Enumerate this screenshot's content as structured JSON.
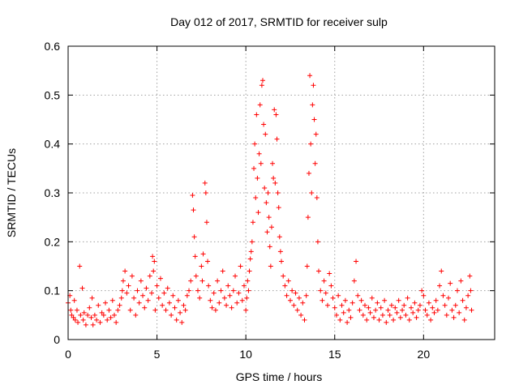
{
  "chart_data": {
    "type": "scatter",
    "title": "Day 012 of 2017, SRMTID for receiver sulp",
    "xlabel": "GPS time / hours",
    "ylabel": "SRMTID / TECUs",
    "xlim": [
      0,
      24
    ],
    "ylim": [
      0,
      0.6
    ],
    "x_ticks": [
      0,
      5,
      10,
      15,
      20
    ],
    "x_tick_labels": [
      "0",
      "5",
      "10",
      "15",
      "20"
    ],
    "y_ticks": [
      0,
      0.1,
      0.2,
      0.3,
      0.4,
      0.5,
      0.6
    ],
    "y_tick_labels": [
      "0",
      "0.1",
      "0.2",
      "0.3",
      "0.4",
      "0.5",
      "0.6"
    ],
    "grid": true,
    "marker": "+",
    "color": "#ff0000",
    "series": [
      {
        "name": "SRMTID",
        "points": [
          [
            0.0,
            0.075
          ],
          [
            0.1,
            0.09
          ],
          [
            0.15,
            0.06
          ],
          [
            0.2,
            0.05
          ],
          [
            0.3,
            0.045
          ],
          [
            0.35,
            0.08
          ],
          [
            0.4,
            0.04
          ],
          [
            0.5,
            0.06
          ],
          [
            0.55,
            0.035
          ],
          [
            0.65,
            0.15
          ],
          [
            0.7,
            0.05
          ],
          [
            0.8,
            0.105
          ],
          [
            0.85,
            0.04
          ],
          [
            0.9,
            0.055
          ],
          [
            1.0,
            0.03
          ],
          [
            1.1,
            0.05
          ],
          [
            1.2,
            0.065
          ],
          [
            1.3,
            0.045
          ],
          [
            1.35,
            0.085
          ],
          [
            1.4,
            0.03
          ],
          [
            1.5,
            0.05
          ],
          [
            1.6,
            0.04
          ],
          [
            1.7,
            0.07
          ],
          [
            1.8,
            0.035
          ],
          [
            1.9,
            0.055
          ],
          [
            2.0,
            0.05
          ],
          [
            2.1,
            0.075
          ],
          [
            2.2,
            0.04
          ],
          [
            2.3,
            0.06
          ],
          [
            2.4,
            0.045
          ],
          [
            2.5,
            0.08
          ],
          [
            2.6,
            0.05
          ],
          [
            2.7,
            0.035
          ],
          [
            2.8,
            0.06
          ],
          [
            2.9,
            0.07
          ],
          [
            3.0,
            0.085
          ],
          [
            3.05,
            0.1
          ],
          [
            3.1,
            0.12
          ],
          [
            3.2,
            0.14
          ],
          [
            3.3,
            0.095
          ],
          [
            3.4,
            0.11
          ],
          [
            3.5,
            0.06
          ],
          [
            3.6,
            0.13
          ],
          [
            3.7,
            0.085
          ],
          [
            3.8,
            0.05
          ],
          [
            3.9,
            0.1
          ],
          [
            4.0,
            0.075
          ],
          [
            4.1,
            0.12
          ],
          [
            4.2,
            0.09
          ],
          [
            4.3,
            0.065
          ],
          [
            4.4,
            0.105
          ],
          [
            4.5,
            0.08
          ],
          [
            4.6,
            0.13
          ],
          [
            4.7,
            0.095
          ],
          [
            4.75,
            0.17
          ],
          [
            4.8,
            0.14
          ],
          [
            4.85,
            0.16
          ],
          [
            4.9,
            0.06
          ],
          [
            5.0,
            0.11
          ],
          [
            5.1,
            0.085
          ],
          [
            5.2,
            0.125
          ],
          [
            5.3,
            0.07
          ],
          [
            5.4,
            0.095
          ],
          [
            5.5,
            0.06
          ],
          [
            5.6,
            0.105
          ],
          [
            5.7,
            0.075
          ],
          [
            5.8,
            0.05
          ],
          [
            5.9,
            0.09
          ],
          [
            6.0,
            0.065
          ],
          [
            6.1,
            0.04
          ],
          [
            6.2,
            0.08
          ],
          [
            6.3,
            0.055
          ],
          [
            6.4,
            0.035
          ],
          [
            6.5,
            0.07
          ],
          [
            6.6,
            0.06
          ],
          [
            6.7,
            0.09
          ],
          [
            6.8,
            0.1
          ],
          [
            6.9,
            0.12
          ],
          [
            7.0,
            0.295
          ],
          [
            7.05,
            0.265
          ],
          [
            7.1,
            0.21
          ],
          [
            7.15,
            0.17
          ],
          [
            7.2,
            0.13
          ],
          [
            7.3,
            0.1
          ],
          [
            7.4,
            0.085
          ],
          [
            7.5,
            0.15
          ],
          [
            7.55,
            0.12
          ],
          [
            7.6,
            0.175
          ],
          [
            7.7,
            0.32
          ],
          [
            7.75,
            0.3
          ],
          [
            7.8,
            0.24
          ],
          [
            7.85,
            0.16
          ],
          [
            7.9,
            0.11
          ],
          [
            8.0,
            0.08
          ],
          [
            8.1,
            0.065
          ],
          [
            8.2,
            0.095
          ],
          [
            8.3,
            0.06
          ],
          [
            8.4,
            0.12
          ],
          [
            8.5,
            0.075
          ],
          [
            8.6,
            0.1
          ],
          [
            8.7,
            0.14
          ],
          [
            8.8,
            0.085
          ],
          [
            8.9,
            0.07
          ],
          [
            9.0,
            0.11
          ],
          [
            9.1,
            0.09
          ],
          [
            9.2,
            0.065
          ],
          [
            9.3,
            0.1
          ],
          [
            9.4,
            0.13
          ],
          [
            9.5,
            0.075
          ],
          [
            9.6,
            0.095
          ],
          [
            9.7,
            0.15
          ],
          [
            9.8,
            0.08
          ],
          [
            9.9,
            0.11
          ],
          [
            10.0,
            0.06
          ],
          [
            10.05,
            0.085
          ],
          [
            10.1,
            0.12
          ],
          [
            10.15,
            0.1
          ],
          [
            10.2,
            0.14
          ],
          [
            10.25,
            0.165
          ],
          [
            10.3,
            0.18
          ],
          [
            10.35,
            0.2
          ],
          [
            10.4,
            0.24
          ],
          [
            10.45,
            0.35
          ],
          [
            10.5,
            0.4
          ],
          [
            10.55,
            0.29
          ],
          [
            10.6,
            0.46
          ],
          [
            10.65,
            0.33
          ],
          [
            10.7,
            0.26
          ],
          [
            10.75,
            0.38
          ],
          [
            10.8,
            0.48
          ],
          [
            10.85,
            0.36
          ],
          [
            10.9,
            0.52
          ],
          [
            10.95,
            0.53
          ],
          [
            11.0,
            0.44
          ],
          [
            11.05,
            0.31
          ],
          [
            11.1,
            0.42
          ],
          [
            11.15,
            0.28
          ],
          [
            11.2,
            0.22
          ],
          [
            11.25,
            0.3
          ],
          [
            11.3,
            0.25
          ],
          [
            11.35,
            0.19
          ],
          [
            11.4,
            0.15
          ],
          [
            11.45,
            0.23
          ],
          [
            11.5,
            0.36
          ],
          [
            11.55,
            0.33
          ],
          [
            11.6,
            0.47
          ],
          [
            11.65,
            0.32
          ],
          [
            11.7,
            0.46
          ],
          [
            11.75,
            0.41
          ],
          [
            11.8,
            0.3
          ],
          [
            11.85,
            0.27
          ],
          [
            11.9,
            0.21
          ],
          [
            11.95,
            0.18
          ],
          [
            12.0,
            0.16
          ],
          [
            12.1,
            0.13
          ],
          [
            12.2,
            0.11
          ],
          [
            12.3,
            0.09
          ],
          [
            12.4,
            0.12
          ],
          [
            12.5,
            0.08
          ],
          [
            12.6,
            0.1
          ],
          [
            12.7,
            0.07
          ],
          [
            12.8,
            0.095
          ],
          [
            12.9,
            0.06
          ],
          [
            13.0,
            0.085
          ],
          [
            13.1,
            0.05
          ],
          [
            13.2,
            0.075
          ],
          [
            13.3,
            0.04
          ],
          [
            13.4,
            0.09
          ],
          [
            13.45,
            0.15
          ],
          [
            13.5,
            0.25
          ],
          [
            13.55,
            0.34
          ],
          [
            13.6,
            0.54
          ],
          [
            13.65,
            0.4
          ],
          [
            13.7,
            0.3
          ],
          [
            13.75,
            0.48
          ],
          [
            13.8,
            0.52
          ],
          [
            13.85,
            0.45
          ],
          [
            13.9,
            0.36
          ],
          [
            13.95,
            0.42
          ],
          [
            14.0,
            0.29
          ],
          [
            14.05,
            0.2
          ],
          [
            14.1,
            0.14
          ],
          [
            14.2,
            0.1
          ],
          [
            14.3,
            0.08
          ],
          [
            14.4,
            0.12
          ],
          [
            14.5,
            0.095
          ],
          [
            14.6,
            0.07
          ],
          [
            14.7,
            0.135
          ],
          [
            14.8,
            0.11
          ],
          [
            14.9,
            0.085
          ],
          [
            15.0,
            0.065
          ],
          [
            15.1,
            0.05
          ],
          [
            15.2,
            0.09
          ],
          [
            15.3,
            0.04
          ],
          [
            15.4,
            0.07
          ],
          [
            15.5,
            0.055
          ],
          [
            15.6,
            0.08
          ],
          [
            15.7,
            0.035
          ],
          [
            15.8,
            0.06
          ],
          [
            15.9,
            0.045
          ],
          [
            16.0,
            0.075
          ],
          [
            16.1,
            0.12
          ],
          [
            16.2,
            0.16
          ],
          [
            16.3,
            0.09
          ],
          [
            16.4,
            0.06
          ],
          [
            16.5,
            0.08
          ],
          [
            16.6,
            0.05
          ],
          [
            16.7,
            0.07
          ],
          [
            16.8,
            0.04
          ],
          [
            16.9,
            0.065
          ],
          [
            17.0,
            0.055
          ],
          [
            17.1,
            0.085
          ],
          [
            17.2,
            0.045
          ],
          [
            17.3,
            0.06
          ],
          [
            17.4,
            0.075
          ],
          [
            17.5,
            0.04
          ],
          [
            17.6,
            0.065
          ],
          [
            17.7,
            0.05
          ],
          [
            17.8,
            0.08
          ],
          [
            17.9,
            0.035
          ],
          [
            18.0,
            0.06
          ],
          [
            18.1,
            0.05
          ],
          [
            18.2,
            0.07
          ],
          [
            18.3,
            0.04
          ],
          [
            18.4,
            0.065
          ],
          [
            18.5,
            0.055
          ],
          [
            18.6,
            0.08
          ],
          [
            18.7,
            0.045
          ],
          [
            18.8,
            0.06
          ],
          [
            18.9,
            0.07
          ],
          [
            19.0,
            0.05
          ],
          [
            19.1,
            0.085
          ],
          [
            19.2,
            0.04
          ],
          [
            19.3,
            0.065
          ],
          [
            19.4,
            0.055
          ],
          [
            19.5,
            0.075
          ],
          [
            19.6,
            0.045
          ],
          [
            19.7,
            0.06
          ],
          [
            19.8,
            0.07
          ],
          [
            19.9,
            0.1
          ],
          [
            20.0,
            0.09
          ],
          [
            20.1,
            0.06
          ],
          [
            20.2,
            0.05
          ],
          [
            20.3,
            0.075
          ],
          [
            20.4,
            0.04
          ],
          [
            20.5,
            0.065
          ],
          [
            20.6,
            0.055
          ],
          [
            20.7,
            0.08
          ],
          [
            20.8,
            0.06
          ],
          [
            20.9,
            0.11
          ],
          [
            21.0,
            0.14
          ],
          [
            21.1,
            0.09
          ],
          [
            21.2,
            0.07
          ],
          [
            21.3,
            0.05
          ],
          [
            21.4,
            0.085
          ],
          [
            21.5,
            0.115
          ],
          [
            21.6,
            0.06
          ],
          [
            21.7,
            0.045
          ],
          [
            21.8,
            0.07
          ],
          [
            21.9,
            0.1
          ],
          [
            22.0,
            0.055
          ],
          [
            22.1,
            0.12
          ],
          [
            22.2,
            0.08
          ],
          [
            22.3,
            0.04
          ],
          [
            22.4,
            0.065
          ],
          [
            22.5,
            0.09
          ],
          [
            22.6,
            0.13
          ],
          [
            22.65,
            0.1
          ],
          [
            22.7,
            0.06
          ]
        ]
      }
    ]
  }
}
